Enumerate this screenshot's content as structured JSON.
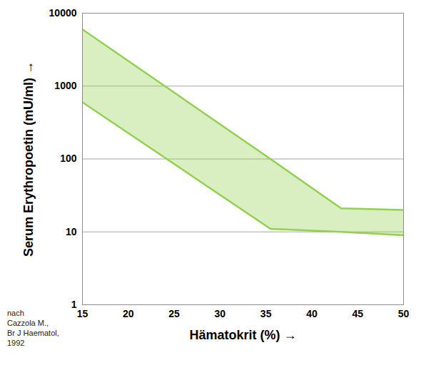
{
  "chart_data": {
    "type": "area",
    "x_label": "Hämatokrit (%)",
    "y_label": "Serum Erythropoetin (mU/ml)",
    "annotation": "nach\nCazzola M.,\nBr J Haematol,\n1992",
    "x": [
      15,
      35.5,
      43.2,
      50
    ],
    "lower": [
      600,
      11,
      10,
      9
    ],
    "upper": [
      6000,
      100,
      21,
      20
    ],
    "color": "#92d050",
    "xlim": [
      15,
      50
    ],
    "xticks": [
      15,
      20,
      25,
      30,
      35,
      40,
      45,
      50
    ],
    "ylim": [
      1,
      10000
    ],
    "yticks": [
      1,
      10,
      100,
      1000,
      10000
    ],
    "log": "y",
    "grid": "y"
  }
}
